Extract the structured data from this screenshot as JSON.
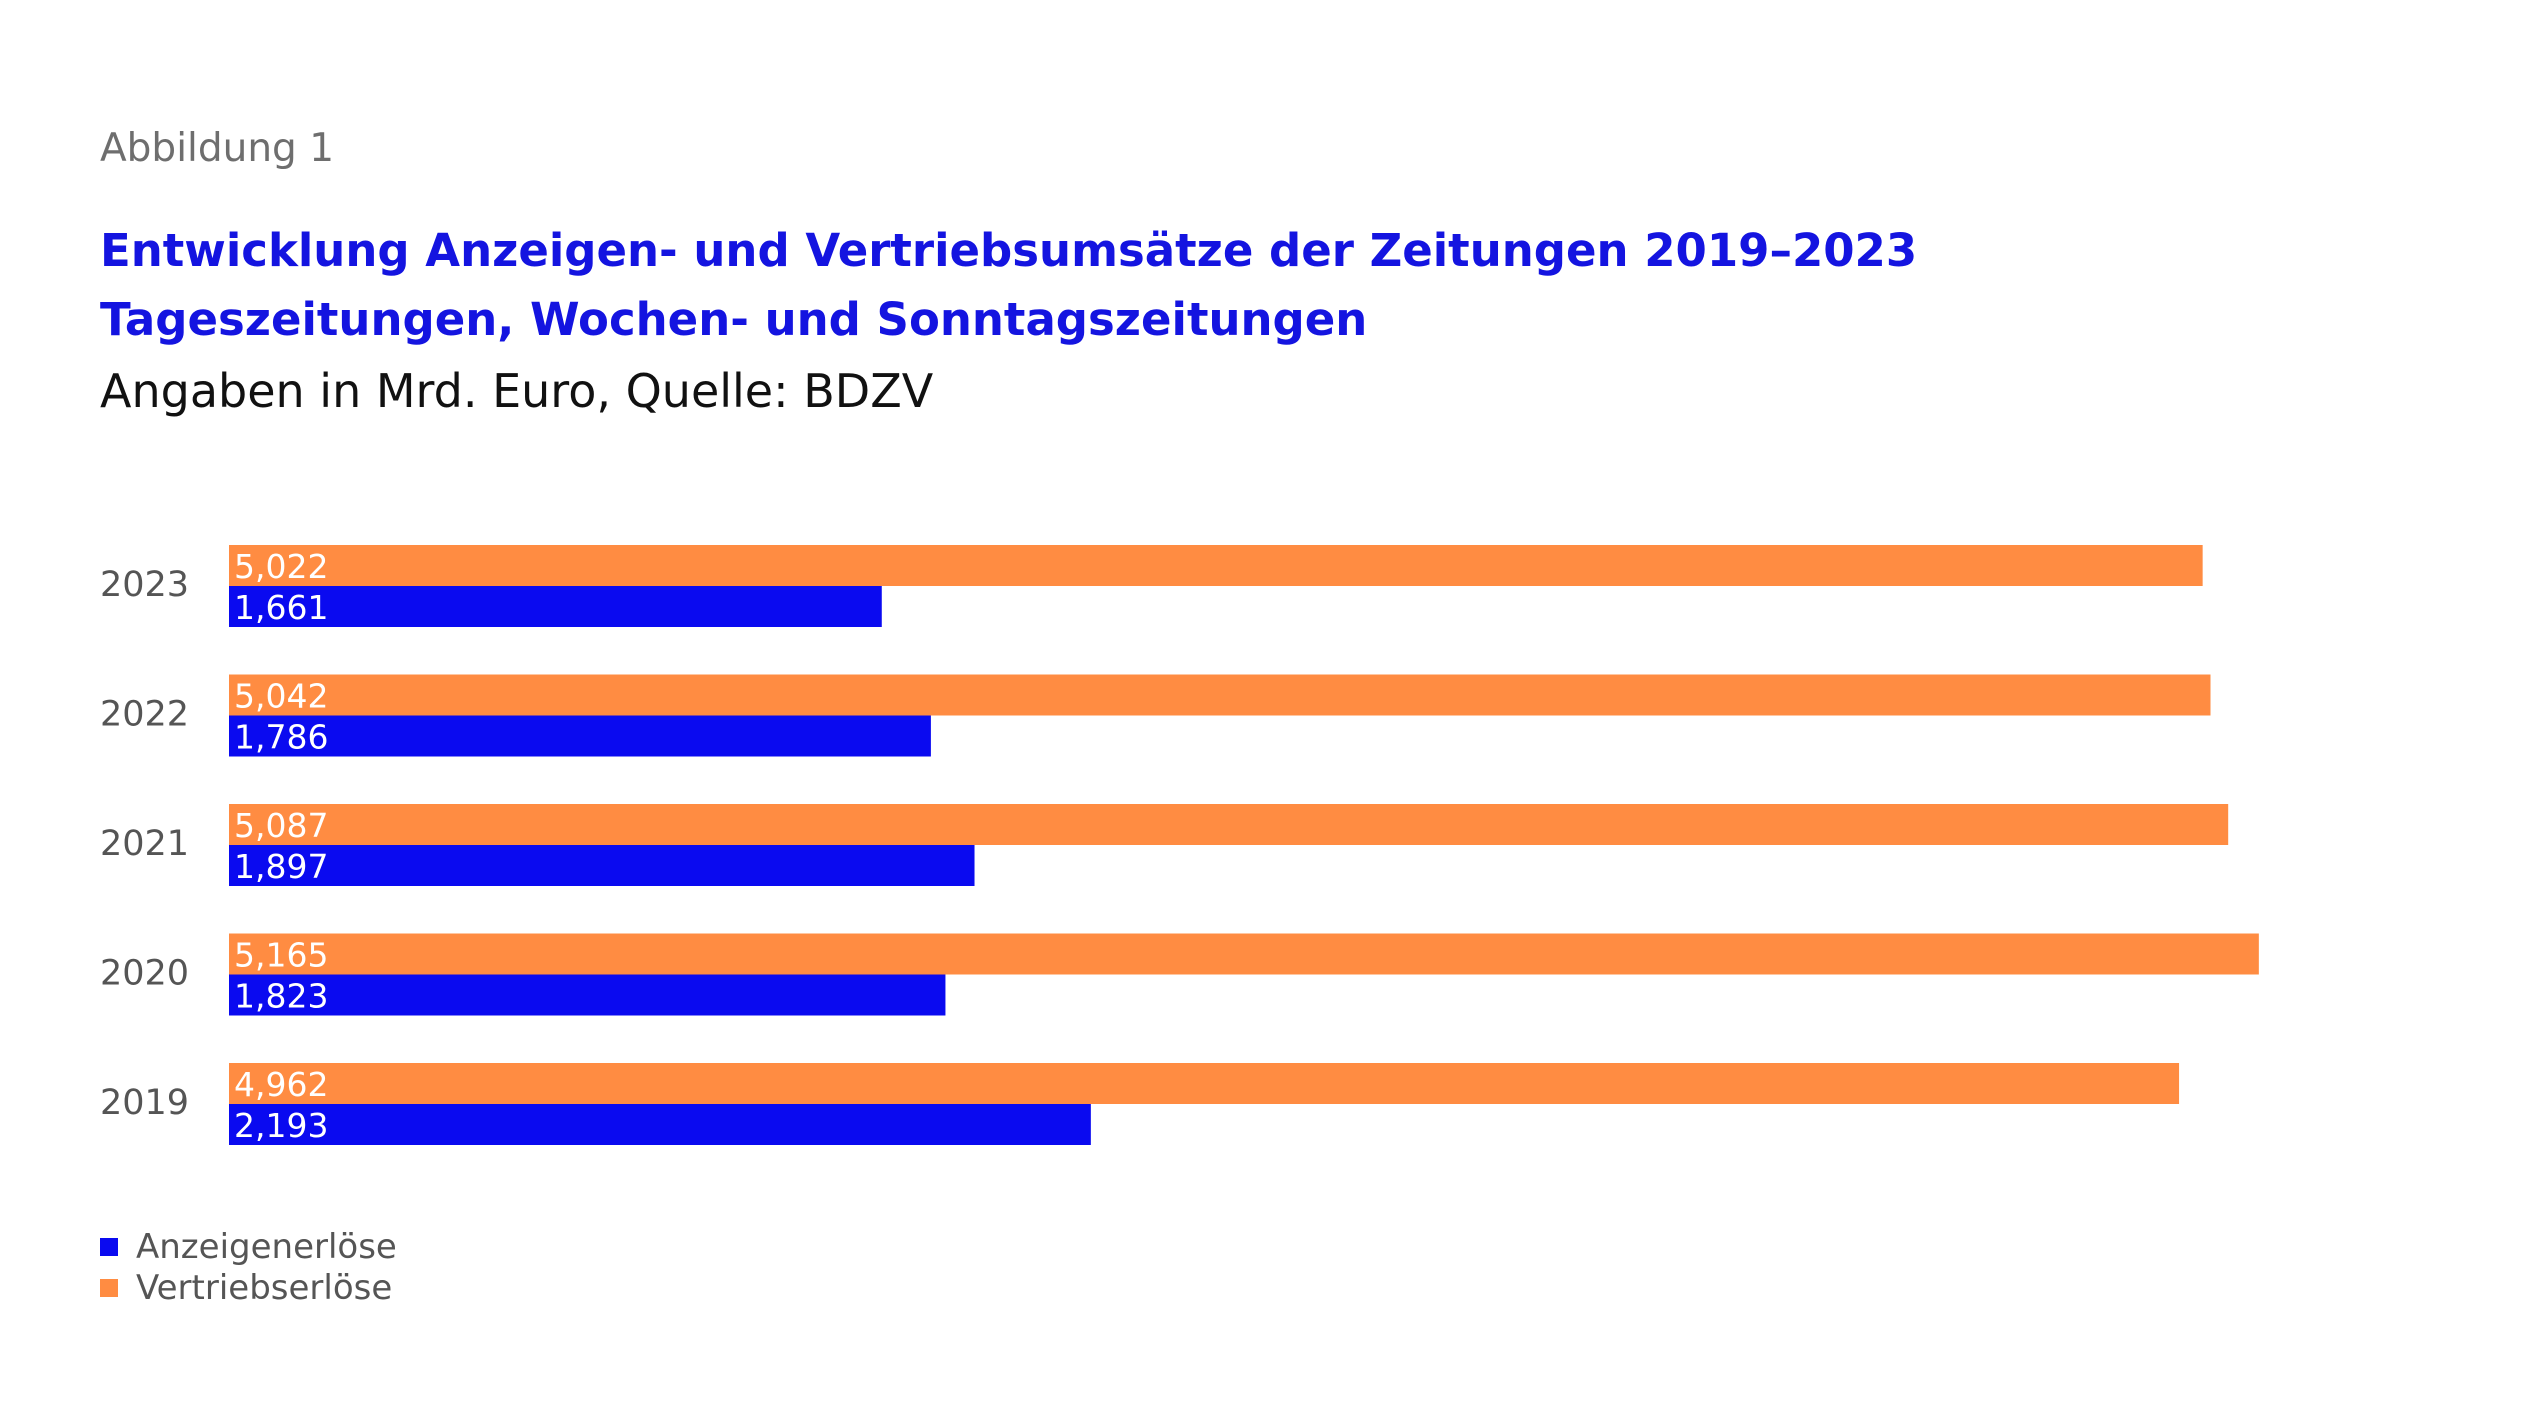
{
  "figure_label": "Abbildung 1",
  "title_line1": "Entwicklung Anzeigen- und Vertriebsumsätze der Zeitungen 2019–2023",
  "title_line2": "Tageszeitungen, Wochen- und Sonntagszeitungen",
  "subtitle": "Angaben in Mrd. Euro, Quelle: BDZV",
  "colors": {
    "anzeigen": "#0a0af0",
    "vertrieb": "#ff8c42",
    "title": "#1414e0"
  },
  "chart_data": {
    "type": "bar",
    "orientation": "horizontal",
    "categories": [
      "2023",
      "2022",
      "2021",
      "2020",
      "2019"
    ],
    "series": [
      {
        "name": "Vertriebserlöse",
        "values": [
          5.022,
          5.042,
          5.087,
          5.165,
          4.962
        ],
        "labels": [
          "5,022",
          "5,042",
          "5,087",
          "5,165",
          "4,962"
        ]
      },
      {
        "name": "Anzeigenerlöse",
        "values": [
          1.661,
          1.786,
          1.897,
          1.823,
          2.193
        ],
        "labels": [
          "1,661",
          "1,786",
          "1,897",
          "1,823",
          "2,193"
        ]
      }
    ],
    "grid": false,
    "legend_position": "bottom-left"
  },
  "legend": {
    "items": [
      {
        "label": "Anzeigenerlöse",
        "color": "#0a0af0"
      },
      {
        "label": "Vertriebserlöse",
        "color": "#ff8c42"
      }
    ]
  }
}
